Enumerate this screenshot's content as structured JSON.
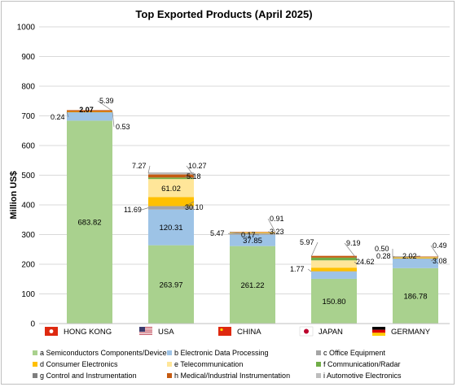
{
  "chart_data": {
    "type": "bar",
    "stacked": true,
    "title": "Top Exported Products (April 2025)",
    "ylabel": "Million US$",
    "ylim": [
      0,
      1000
    ],
    "yticks": [
      0,
      100,
      200,
      300,
      400,
      500,
      600,
      700,
      800,
      900,
      1000
    ],
    "grid": true,
    "legend_position": "bottom",
    "categories": [
      "HONG KONG",
      "USA",
      "CHINA",
      "JAPAN",
      "GERMANY"
    ],
    "series": [
      {
        "name": "a Semiconductors Components/Devices",
        "color": "#a9d18e",
        "values": [
          683.82,
          263.97,
          261.22,
          150.8,
          186.78
        ]
      },
      {
        "name": "b Electronic Data Processing",
        "color": "#9dc3e6",
        "values": [
          29.19,
          120.31,
          37.85,
          23.9,
          32.75
        ]
      },
      {
        "name": "c Office Equipment",
        "color": "#a5a5a5",
        "values": [
          0.24,
          11.69,
          5.47,
          1.77,
          0.28
        ]
      },
      {
        "name": "d Consumer Electronics",
        "color": "#ffc000",
        "values": [
          0.53,
          30.1,
          3.23,
          12.03,
          3.08
        ]
      },
      {
        "name": "e Telecommunication",
        "color": "#ffe699",
        "values": [
          0,
          61.02,
          0.17,
          24.62,
          2.02
        ]
      },
      {
        "name": "f Communication/Radar",
        "color": "#70ad47",
        "values": [
          0,
          5.18,
          0,
          9.19,
          0
        ]
      },
      {
        "name": "g Control and Instrumentation",
        "color": "#7f7f7f",
        "values": [
          0,
          0,
          0,
          0,
          0.5
        ]
      },
      {
        "name": "h Medical/Industrial Instrumentation",
        "color": "#c55a11",
        "values": [
          5.39,
          10.27,
          0.91,
          5.97,
          0.49
        ]
      },
      {
        "name": "i Automotive Electronics",
        "color": "#bdbdbd",
        "values": [
          0,
          7.27,
          0,
          0,
          0
        ]
      }
    ],
    "extra_labels": [
      "2.07"
    ],
    "flags": [
      "hk-flag-icon",
      "us-flag-icon",
      "cn-flag-icon",
      "jp-flag-icon",
      "de-flag-icon"
    ]
  }
}
